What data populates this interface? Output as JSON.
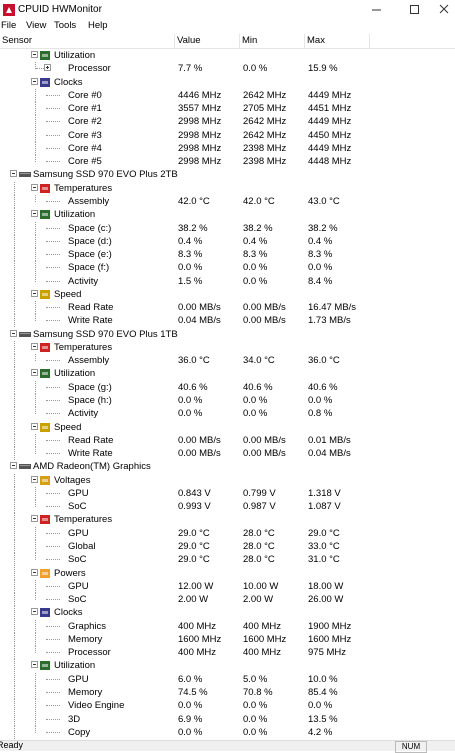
{
  "window": {
    "title": "CPUID HWMonitor",
    "menu": [
      "File",
      "View",
      "Tools",
      "Help"
    ],
    "status": "Ready",
    "indicator": "NUM"
  },
  "columns": [
    "Sensor",
    "Value",
    "Min",
    "Max"
  ],
  "tree": {
    "groups": [
      {
        "label": "Utilization",
        "color": "#2e6b2e",
        "sensors": [
          {
            "label": "Processor",
            "value": "7.7 %",
            "min": "0.0 %",
            "max": "15.9 %",
            "collapsed": true
          }
        ]
      },
      {
        "label": "Clocks",
        "color": "#3a3a8c",
        "sensors": [
          {
            "label": "Core #0",
            "value": "4446 MHz",
            "min": "2642 MHz",
            "max": "4449 MHz"
          },
          {
            "label": "Core #1",
            "value": "3557 MHz",
            "min": "2705 MHz",
            "max": "4451 MHz"
          },
          {
            "label": "Core #2",
            "value": "2998 MHz",
            "min": "2642 MHz",
            "max": "4449 MHz"
          },
          {
            "label": "Core #3",
            "value": "2998 MHz",
            "min": "2642 MHz",
            "max": "4450 MHz"
          },
          {
            "label": "Core #4",
            "value": "2998 MHz",
            "min": "2398 MHz",
            "max": "4449 MHz"
          },
          {
            "label": "Core #5",
            "value": "2998 MHz",
            "min": "2398 MHz",
            "max": "4448 MHz"
          }
        ]
      }
    ],
    "devices": [
      {
        "label": "Samsung SSD 970 EVO Plus 2TB",
        "groups": [
          {
            "label": "Temperatures",
            "color": "#cc2222",
            "sensors": [
              {
                "label": "Assembly",
                "value": "42.0 °C",
                "min": "42.0 °C",
                "max": "43.0 °C"
              }
            ]
          },
          {
            "label": "Utilization",
            "color": "#2e6b2e",
            "sensors": [
              {
                "label": "Space (c:)",
                "value": "38.2 %",
                "min": "38.2 %",
                "max": "38.2 %"
              },
              {
                "label": "Space (d:)",
                "value": "0.4 %",
                "min": "0.4 %",
                "max": "0.4 %"
              },
              {
                "label": "Space (e:)",
                "value": "8.3 %",
                "min": "8.3 %",
                "max": "8.3 %"
              },
              {
                "label": "Space (f:)",
                "value": "0.0 %",
                "min": "0.0 %",
                "max": "0.0 %"
              },
              {
                "label": "Activity",
                "value": "1.5 %",
                "min": "0.0 %",
                "max": "8.4 %"
              }
            ]
          },
          {
            "label": "Speed",
            "color": "#c8a000",
            "sensors": [
              {
                "label": "Read Rate",
                "value": "0.00 MB/s",
                "min": "0.00 MB/s",
                "max": "16.47 MB/s"
              },
              {
                "label": "Write Rate",
                "value": "0.04 MB/s",
                "min": "0.00 MB/s",
                "max": "1.73 MB/s"
              }
            ]
          }
        ]
      },
      {
        "label": "Samsung SSD 970 EVO Plus 1TB",
        "groups": [
          {
            "label": "Temperatures",
            "color": "#cc2222",
            "sensors": [
              {
                "label": "Assembly",
                "value": "36.0 °C",
                "min": "34.0 °C",
                "max": "36.0 °C"
              }
            ]
          },
          {
            "label": "Utilization",
            "color": "#2e6b2e",
            "sensors": [
              {
                "label": "Space (g:)",
                "value": "40.6 %",
                "min": "40.6 %",
                "max": "40.6 %"
              },
              {
                "label": "Space (h:)",
                "value": "0.0 %",
                "min": "0.0 %",
                "max": "0.0 %"
              },
              {
                "label": "Activity",
                "value": "0.0 %",
                "min": "0.0 %",
                "max": "0.8 %"
              }
            ]
          },
          {
            "label": "Speed",
            "color": "#c8a000",
            "sensors": [
              {
                "label": "Read Rate",
                "value": "0.00 MB/s",
                "min": "0.00 MB/s",
                "max": "0.01 MB/s"
              },
              {
                "label": "Write Rate",
                "value": "0.00 MB/s",
                "min": "0.00 MB/s",
                "max": "0.04 MB/s"
              }
            ]
          }
        ]
      },
      {
        "label": "AMD Radeon(TM) Graphics",
        "groups": [
          {
            "label": "Voltages",
            "color": "#d4a017",
            "sensors": [
              {
                "label": "GPU",
                "value": "0.843 V",
                "min": "0.799 V",
                "max": "1.318 V"
              },
              {
                "label": "SoC",
                "value": "0.993 V",
                "min": "0.987 V",
                "max": "1.087 V"
              }
            ]
          },
          {
            "label": "Temperatures",
            "color": "#cc2222",
            "sensors": [
              {
                "label": "GPU",
                "value": "29.0 °C",
                "min": "28.0 °C",
                "max": "29.0 °C"
              },
              {
                "label": "Global",
                "value": "29.0 °C",
                "min": "28.0 °C",
                "max": "33.0 °C"
              },
              {
                "label": "SoC",
                "value": "29.0 °C",
                "min": "28.0 °C",
                "max": "31.0 °C"
              }
            ]
          },
          {
            "label": "Powers",
            "color": "#f0a030",
            "sensors": [
              {
                "label": "GPU",
                "value": "12.00 W",
                "min": "10.00 W",
                "max": "18.00 W"
              },
              {
                "label": "SoC",
                "value": "2.00 W",
                "min": "2.00 W",
                "max": "26.00 W"
              }
            ]
          },
          {
            "label": "Clocks",
            "color": "#3a3a8c",
            "sensors": [
              {
                "label": "Graphics",
                "value": "400 MHz",
                "min": "400 MHz",
                "max": "1900 MHz"
              },
              {
                "label": "Memory",
                "value": "1600 MHz",
                "min": "1600 MHz",
                "max": "1600 MHz"
              },
              {
                "label": "Processor",
                "value": "400 MHz",
                "min": "400 MHz",
                "max": "975 MHz"
              }
            ]
          },
          {
            "label": "Utilization",
            "color": "#2e6b2e",
            "sensors": [
              {
                "label": "GPU",
                "value": "6.0 %",
                "min": "5.0 %",
                "max": "10.0 %"
              },
              {
                "label": "Memory",
                "value": "74.5 %",
                "min": "70.8 %",
                "max": "85.4 %"
              },
              {
                "label": "Video Engine",
                "value": "0.0 %",
                "min": "0.0 %",
                "max": "0.0 %"
              },
              {
                "label": "3D",
                "value": "6.9 %",
                "min": "0.0 %",
                "max": "13.5 %"
              },
              {
                "label": "Copy",
                "value": "0.0 %",
                "min": "0.0 %",
                "max": "4.2 %"
              }
            ]
          }
        ]
      }
    ]
  }
}
